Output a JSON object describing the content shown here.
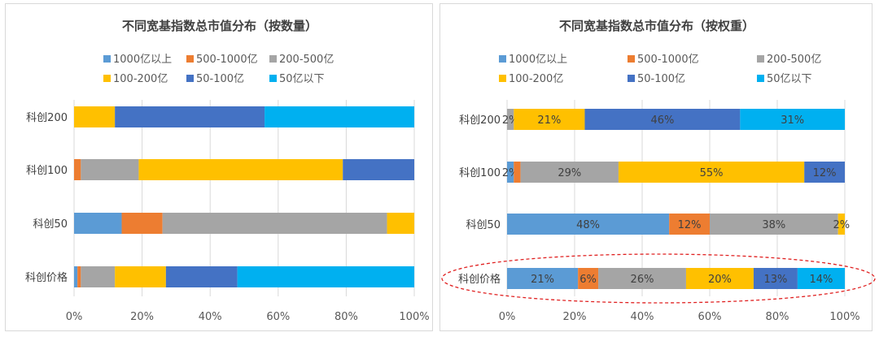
{
  "chart_data": [
    {
      "type": "bar",
      "orientation": "horizontal",
      "stacked": "percent",
      "title": "不同宽基指数总市值分布（按数量）",
      "categories": [
        "科创200",
        "科创100",
        "科创50",
        "科创价格"
      ],
      "series": [
        {
          "name": "1000亿以上",
          "color": "#5b9bd5",
          "values": [
            0,
            0,
            14,
            1
          ]
        },
        {
          "name": "500-1000亿",
          "color": "#ed7d31",
          "values": [
            0,
            2,
            12,
            1
          ]
        },
        {
          "name": "200-500亿",
          "color": "#a5a5a5",
          "values": [
            0,
            17,
            66,
            10
          ]
        },
        {
          "name": "100-200亿",
          "color": "#ffc000",
          "values": [
            12,
            60,
            8,
            15
          ]
        },
        {
          "name": "50-100亿",
          "color": "#4472c4",
          "values": [
            44,
            21,
            0,
            21
          ]
        },
        {
          "name": "50亿以下",
          "color": "#00b0f0",
          "values": [
            44,
            0,
            0,
            52
          ]
        }
      ],
      "x_ticks": [
        "0%",
        "20%",
        "40%",
        "60%",
        "80%",
        "100%"
      ],
      "xlim": [
        0,
        100
      ],
      "legend_position": "top",
      "grid": true,
      "data_labels": false
    },
    {
      "type": "bar",
      "orientation": "horizontal",
      "stacked": "percent",
      "title": "不同宽基指数总市值分布（按权重）",
      "categories": [
        "科创200",
        "科创100",
        "科创50",
        "科创价格"
      ],
      "series": [
        {
          "name": "1000亿以上",
          "color": "#5b9bd5",
          "values": [
            0,
            2,
            48,
            21
          ],
          "labels": [
            "",
            "2%",
            "48%",
            "21%"
          ]
        },
        {
          "name": "500-1000亿",
          "color": "#ed7d31",
          "values": [
            0,
            2,
            12,
            6
          ],
          "labels": [
            "",
            "",
            "12%",
            "6%"
          ]
        },
        {
          "name": "200-500亿",
          "color": "#a5a5a5",
          "values": [
            2,
            29,
            38,
            26
          ],
          "labels": [
            "2%",
            "29%",
            "38%",
            "26%"
          ]
        },
        {
          "name": "100-200亿",
          "color": "#ffc000",
          "values": [
            21,
            55,
            2,
            20
          ],
          "labels": [
            "21%",
            "55%",
            "2%",
            "20%"
          ]
        },
        {
          "name": "50-100亿",
          "color": "#4472c4",
          "values": [
            46,
            12,
            0,
            13
          ],
          "labels": [
            "46%",
            "12%",
            "",
            "13%"
          ]
        },
        {
          "name": "50亿以下",
          "color": "#00b0f0",
          "values": [
            31,
            0,
            0,
            14
          ],
          "labels": [
            "31%",
            "",
            "",
            "14%"
          ]
        }
      ],
      "x_ticks": [
        "0%",
        "20%",
        "40%",
        "60%",
        "80%",
        "100%"
      ],
      "xlim": [
        0,
        100
      ],
      "legend_position": "top",
      "grid": true,
      "data_labels": true,
      "highlight": {
        "category": "科创价格",
        "style": "dashed-ellipse",
        "color": "#e02020"
      }
    }
  ]
}
